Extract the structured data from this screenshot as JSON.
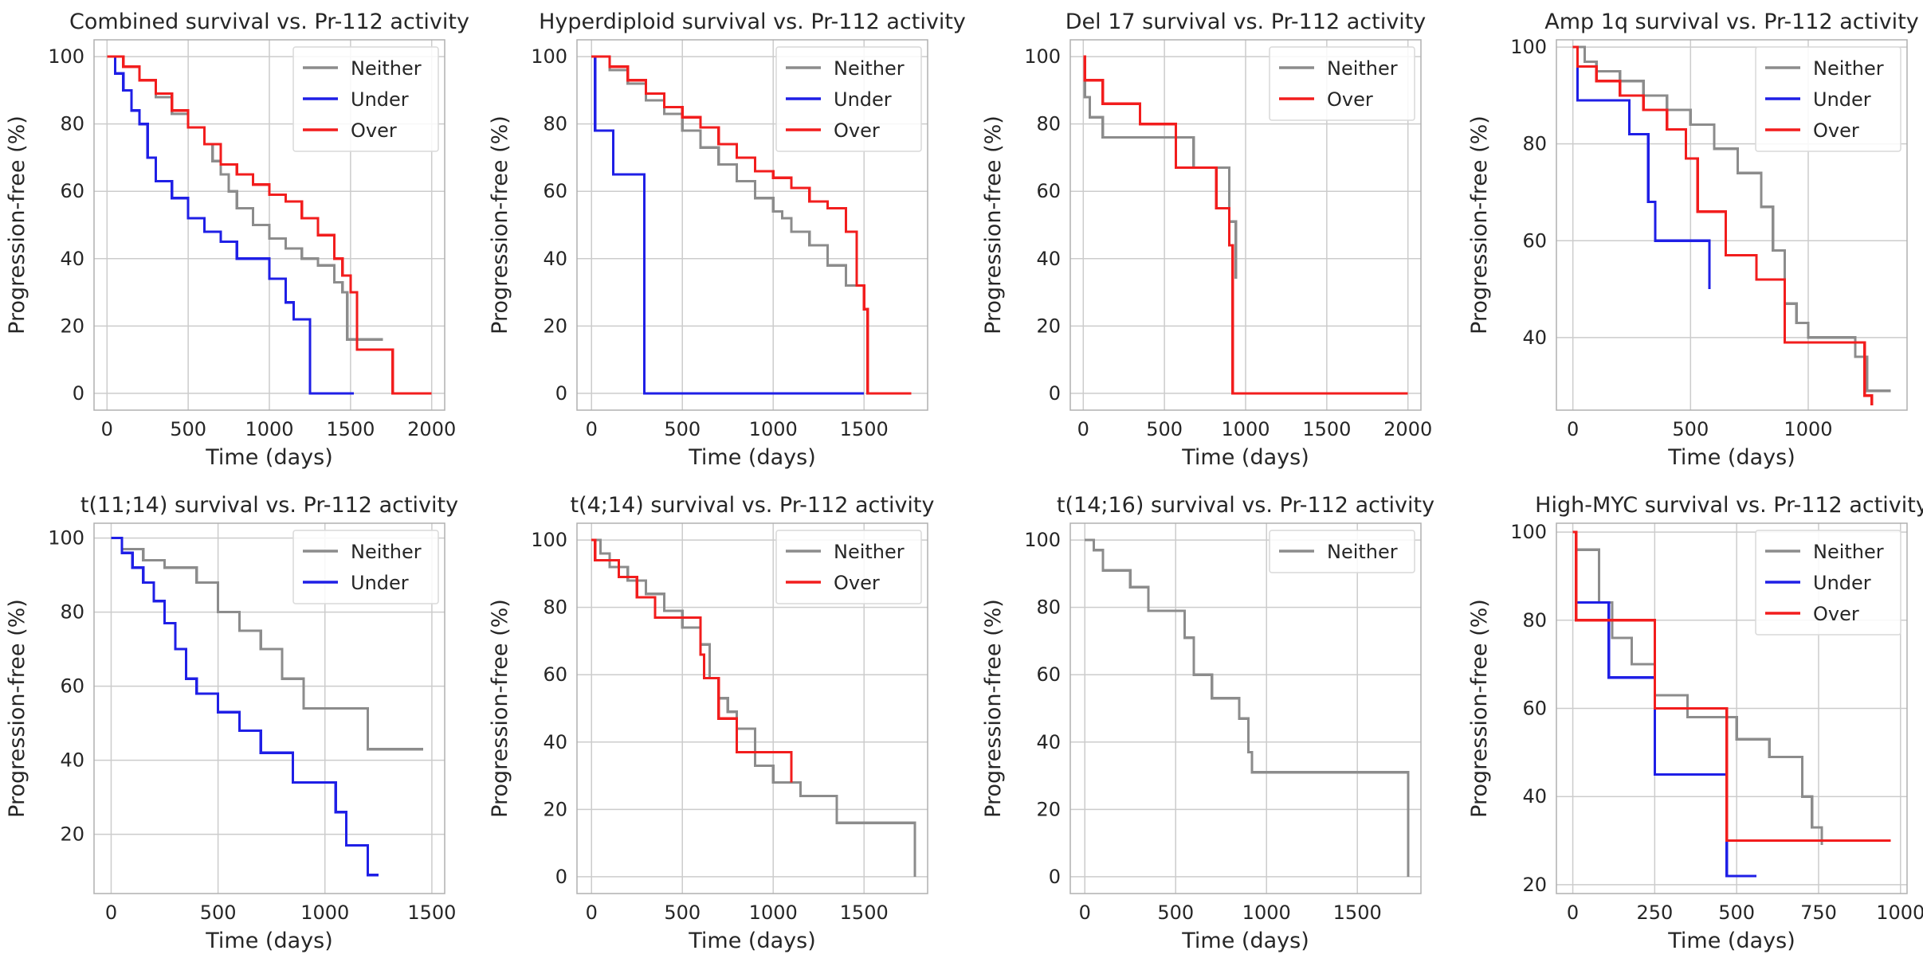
{
  "figure": {
    "background": "#ffffff",
    "grid_color": "#cccccc",
    "axes_color": "#b0b0b0"
  },
  "colors": {
    "Neither": "#8c8c8c",
    "Under": "#1f1fe6",
    "Over": "#f21d1d"
  },
  "chart_data": [
    {
      "type": "line",
      "step": true,
      "title": "Combined survival vs. Pr-112 activity",
      "xlabel": "Time (days)",
      "ylabel": "Progression-free (%)",
      "xlim": [
        -80,
        2080
      ],
      "ylim": [
        -5,
        105
      ],
      "xticks": [
        0,
        500,
        1000,
        1500,
        2000
      ],
      "yticks": [
        0,
        20,
        40,
        60,
        80,
        100
      ],
      "legend": "top-right",
      "grid": true,
      "series": [
        {
          "name": "Neither",
          "x": [
            0,
            100,
            200,
            300,
            400,
            500,
            600,
            650,
            700,
            750,
            800,
            900,
            1000,
            1100,
            1200,
            1300,
            1400,
            1450,
            1480,
            1700
          ],
          "y": [
            100,
            97,
            93,
            88,
            83,
            79,
            74,
            69,
            65,
            60,
            55,
            50,
            46,
            43,
            40,
            38,
            33,
            30,
            16,
            16
          ]
        },
        {
          "name": "Under",
          "x": [
            0,
            50,
            100,
            150,
            200,
            250,
            300,
            400,
            500,
            600,
            700,
            800,
            900,
            1000,
            1100,
            1150,
            1250,
            1520
          ],
          "y": [
            100,
            95,
            90,
            84,
            80,
            70,
            63,
            58,
            52,
            48,
            45,
            40,
            40,
            34,
            27,
            22,
            0,
            0
          ]
        },
        {
          "name": "Over",
          "x": [
            0,
            100,
            200,
            300,
            400,
            500,
            600,
            700,
            800,
            900,
            1000,
            1100,
            1200,
            1300,
            1400,
            1450,
            1500,
            1540,
            1760,
            2000
          ],
          "y": [
            100,
            97,
            93,
            89,
            84,
            79,
            74,
            68,
            65,
            62,
            59,
            57,
            52,
            47,
            40,
            35,
            30,
            13,
            0,
            0
          ]
        }
      ]
    },
    {
      "type": "line",
      "step": true,
      "title": "Hyperdiploid survival vs. Pr-112 activity",
      "xlabel": "Time (days)",
      "ylabel": "Progression-free (%)",
      "xlim": [
        -80,
        1850
      ],
      "ylim": [
        -5,
        105
      ],
      "xticks": [
        0,
        500,
        1000,
        1500
      ],
      "yticks": [
        0,
        20,
        40,
        60,
        80,
        100
      ],
      "legend": "top-right",
      "grid": true,
      "series": [
        {
          "name": "Neither",
          "x": [
            0,
            100,
            200,
            300,
            400,
            500,
            600,
            700,
            800,
            900,
            1000,
            1050,
            1100,
            1200,
            1300,
            1400,
            1500
          ],
          "y": [
            100,
            96,
            92,
            87,
            83,
            78,
            73,
            68,
            63,
            58,
            54,
            52,
            48,
            44,
            38,
            32,
            32
          ]
        },
        {
          "name": "Under",
          "x": [
            0,
            20,
            120,
            290,
            1500
          ],
          "y": [
            100,
            78,
            65,
            0,
            0
          ]
        },
        {
          "name": "Over",
          "x": [
            0,
            100,
            200,
            300,
            400,
            500,
            600,
            700,
            800,
            900,
            1000,
            1100,
            1200,
            1300,
            1400,
            1460,
            1500,
            1520,
            1760
          ],
          "y": [
            100,
            97,
            93,
            89,
            85,
            82,
            79,
            74,
            70,
            66,
            64,
            61,
            57,
            55,
            48,
            32,
            25,
            0,
            0
          ]
        }
      ]
    },
    {
      "type": "line",
      "step": true,
      "title": "Del 17 survival vs. Pr-112 activity",
      "xlabel": "Time (days)",
      "ylabel": "Progression-free (%)",
      "xlim": [
        -80,
        2080
      ],
      "ylim": [
        -5,
        105
      ],
      "xticks": [
        0,
        500,
        1000,
        1500,
        2000
      ],
      "yticks": [
        0,
        20,
        40,
        60,
        80,
        100
      ],
      "legend": "top-right",
      "grid": true,
      "series": [
        {
          "name": "Neither",
          "x": [
            0,
            10,
            40,
            120,
            600,
            680,
            900,
            940
          ],
          "y": [
            100,
            88,
            82,
            76,
            76,
            67,
            51,
            34
          ]
        },
        {
          "name": "Over",
          "x": [
            0,
            10,
            120,
            350,
            570,
            820,
            900,
            920,
            2000
          ],
          "y": [
            100,
            93,
            86,
            80,
            67,
            55,
            44,
            0,
            0
          ]
        }
      ]
    },
    {
      "type": "line",
      "step": true,
      "title": "Amp 1q survival vs. Pr-112 activity",
      "xlabel": "Time (days)",
      "ylabel": "Progression-free (%)",
      "xlim": [
        -70,
        1420
      ],
      "ylim": [
        25,
        101.5
      ],
      "xticks": [
        0,
        500,
        1000
      ],
      "yticks": [
        40,
        60,
        80,
        100
      ],
      "legend": "top-right",
      "grid": true,
      "series": [
        {
          "name": "Neither",
          "x": [
            0,
            50,
            100,
            200,
            300,
            400,
            500,
            600,
            700,
            800,
            850,
            900,
            950,
            1000,
            1200,
            1250,
            1350
          ],
          "y": [
            100,
            97,
            95,
            93,
            90,
            87,
            84,
            79,
            74,
            67,
            58,
            47,
            43,
            40,
            36,
            29,
            29
          ]
        },
        {
          "name": "Under",
          "x": [
            0,
            20,
            150,
            240,
            320,
            350,
            580
          ],
          "y": [
            100,
            89,
            89,
            82,
            68,
            60,
            50
          ]
        },
        {
          "name": "Over",
          "x": [
            0,
            20,
            100,
            200,
            300,
            400,
            480,
            530,
            650,
            780,
            900,
            1150,
            1240,
            1270
          ],
          "y": [
            100,
            96,
            93,
            90,
            87,
            83,
            77,
            66,
            57,
            52,
            39,
            39,
            28,
            26
          ]
        }
      ]
    },
    {
      "type": "line",
      "step": true,
      "title": "t(11;14) survival vs. Pr-112 activity",
      "xlabel": "Time (days)",
      "ylabel": "Progression-free (%)",
      "xlim": [
        -80,
        1560
      ],
      "ylim": [
        4,
        104
      ],
      "xticks": [
        0,
        500,
        1000,
        1500
      ],
      "yticks": [
        20,
        40,
        60,
        80,
        100
      ],
      "legend": "top-right",
      "grid": true,
      "series": [
        {
          "name": "Neither",
          "x": [
            0,
            50,
            150,
            250,
            400,
            500,
            600,
            700,
            800,
            900,
            1200,
            1460
          ],
          "y": [
            100,
            97,
            94,
            92,
            88,
            80,
            75,
            70,
            62,
            54,
            43,
            43
          ]
        },
        {
          "name": "Under",
          "x": [
            0,
            50,
            100,
            150,
            200,
            250,
            300,
            350,
            400,
            500,
            600,
            700,
            850,
            1000,
            1050,
            1100,
            1200,
            1250
          ],
          "y": [
            100,
            96,
            92,
            88,
            83,
            77,
            70,
            62,
            58,
            53,
            48,
            42,
            34,
            34,
            26,
            17,
            9,
            9
          ]
        }
      ]
    },
    {
      "type": "line",
      "step": true,
      "title": "t(4;14) survival vs. Pr-112 activity",
      "xlabel": "Time (days)",
      "ylabel": "Progression-free (%)",
      "xlim": [
        -80,
        1850
      ],
      "ylim": [
        -5,
        105
      ],
      "xticks": [
        0,
        500,
        1000,
        1500
      ],
      "yticks": [
        0,
        20,
        40,
        60,
        80,
        100
      ],
      "legend": "top-right",
      "grid": true,
      "series": [
        {
          "name": "Neither",
          "x": [
            0,
            50,
            100,
            200,
            300,
            400,
            500,
            600,
            650,
            700,
            750,
            800,
            900,
            1000,
            1150,
            1350,
            1780
          ],
          "y": [
            100,
            96,
            92,
            88,
            84,
            79,
            74,
            69,
            59,
            53,
            49,
            44,
            33,
            28,
            24,
            16,
            0
          ]
        },
        {
          "name": "Over",
          "x": [
            0,
            20,
            150,
            250,
            350,
            600,
            620,
            700,
            800,
            1100
          ],
          "y": [
            100,
            94,
            89,
            83,
            77,
            66,
            59,
            47,
            37,
            28
          ]
        }
      ]
    },
    {
      "type": "line",
      "step": true,
      "title": "t(14;16) survival vs. Pr-112 activity",
      "xlabel": "Time (days)",
      "ylabel": "Progression-free (%)",
      "xlim": [
        -80,
        1850
      ],
      "ylim": [
        -5,
        105
      ],
      "xticks": [
        0,
        500,
        1000,
        1500
      ],
      "yticks": [
        0,
        20,
        40,
        60,
        80,
        100
      ],
      "legend": "top-right",
      "grid": true,
      "series": [
        {
          "name": "Neither",
          "x": [
            0,
            50,
            100,
            250,
            350,
            550,
            600,
            700,
            850,
            900,
            920,
            1780
          ],
          "y": [
            100,
            97,
            91,
            86,
            79,
            71,
            60,
            53,
            47,
            37,
            31,
            0
          ]
        }
      ]
    },
    {
      "type": "line",
      "step": true,
      "title": "High-MYC survival vs. Pr-112 activity",
      "xlabel": "Time (days)",
      "ylabel": "Progression-free (%)",
      "xlim": [
        -50,
        1020
      ],
      "ylim": [
        18,
        102
      ],
      "xticks": [
        0,
        250,
        500,
        750,
        1000
      ],
      "yticks": [
        20,
        40,
        60,
        80,
        100
      ],
      "legend": "top-right",
      "grid": true,
      "series": [
        {
          "name": "Neither",
          "x": [
            0,
            10,
            80,
            120,
            180,
            250,
            350,
            500,
            600,
            700,
            730,
            760
          ],
          "y": [
            100,
            96,
            84,
            76,
            70,
            63,
            58,
            53,
            49,
            40,
            33,
            29
          ]
        },
        {
          "name": "Under",
          "x": [
            0,
            10,
            110,
            250,
            470,
            560
          ],
          "y": [
            100,
            84,
            67,
            45,
            22,
            22
          ]
        },
        {
          "name": "Over",
          "x": [
            0,
            10,
            250,
            470,
            970
          ],
          "y": [
            100,
            80,
            60,
            30,
            30
          ]
        }
      ]
    }
  ]
}
